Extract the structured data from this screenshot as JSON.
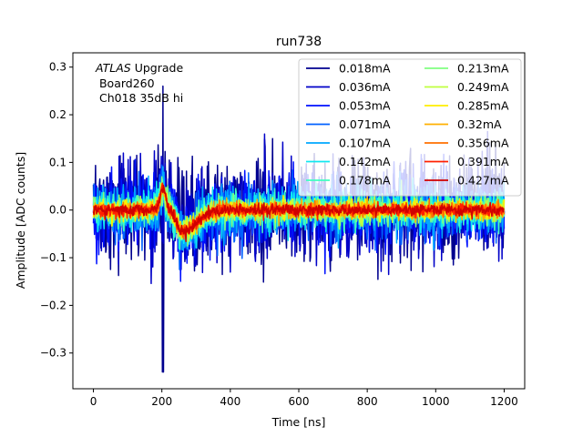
{
  "chart_data": {
    "type": "line",
    "title": "run738",
    "xlabel": "Time [ns]",
    "ylabel": "Amplitude [ADC counts]",
    "xlim": [
      -60,
      1260
    ],
    "ylim": [
      -0.375,
      0.33
    ],
    "xticks": [
      0,
      200,
      400,
      600,
      800,
      1000,
      1200
    ],
    "yticks": [
      -0.3,
      -0.2,
      -0.1,
      0.0,
      0.1,
      0.2,
      0.3
    ],
    "xtick_labels": [
      "0",
      "200",
      "400",
      "600",
      "800",
      "1000",
      "1200"
    ],
    "ytick_labels": [
      "−0.3",
      "−0.2",
      "−0.1",
      "0.0",
      "0.1",
      "0.2",
      "0.3"
    ],
    "grid": false,
    "legend_placement": "top-right",
    "legend_columns": 2,
    "annotation": {
      "line1_italic": "ATLAS",
      "line1_rest": " Upgrade",
      "line2": " Board260",
      "line3": " Ch018 35dB hi"
    },
    "x_range": [
      0,
      1200
    ],
    "series": [
      {
        "name": "0.018mA",
        "color": "#00008f",
        "noise": 0.1,
        "sample_every_ns": 1.5625
      },
      {
        "name": "0.036mA",
        "color": "#0000c8",
        "noise": 0.09,
        "sample_every_ns": 1.5625
      },
      {
        "name": "0.053mA",
        "color": "#0010ff",
        "noise": 0.072,
        "sample_every_ns": 1.5625
      },
      {
        "name": "0.071mA",
        "color": "#0060ff",
        "noise": 0.058,
        "sample_every_ns": 1.5625
      },
      {
        "name": "0.107mA",
        "color": "#00a8ff",
        "noise": 0.045,
        "sample_every_ns": 1.5625
      },
      {
        "name": "0.142mA",
        "color": "#10e8f0",
        "noise": 0.036,
        "sample_every_ns": 1.5625
      },
      {
        "name": "0.178mA",
        "color": "#40ffc0",
        "noise": 0.03,
        "sample_every_ns": 1.5625
      },
      {
        "name": "0.213mA",
        "color": "#80ff80",
        "noise": 0.025,
        "sample_every_ns": 1.5625
      },
      {
        "name": "0.249mA",
        "color": "#bfff3f",
        "noise": 0.021,
        "sample_every_ns": 1.5625
      },
      {
        "name": "0.285mA",
        "color": "#ffee00",
        "noise": 0.018,
        "sample_every_ns": 1.5625
      },
      {
        "name": "0.32mA",
        "color": "#ffb000",
        "noise": 0.016,
        "sample_every_ns": 1.5625
      },
      {
        "name": "0.356mA",
        "color": "#ff7000",
        "noise": 0.014,
        "sample_every_ns": 1.5625
      },
      {
        "name": "0.391mA",
        "color": "#ff2000",
        "noise": 0.012,
        "sample_every_ns": 1.5625
      },
      {
        "name": "0.427mA",
        "color": "#d00000",
        "noise": 0.011,
        "sample_every_ns": 1.5625
      }
    ],
    "pulse": {
      "peak_x": 203,
      "peak_y": 0.045,
      "undershoot_x": 258,
      "undershoot_y": -0.045
    }
  }
}
